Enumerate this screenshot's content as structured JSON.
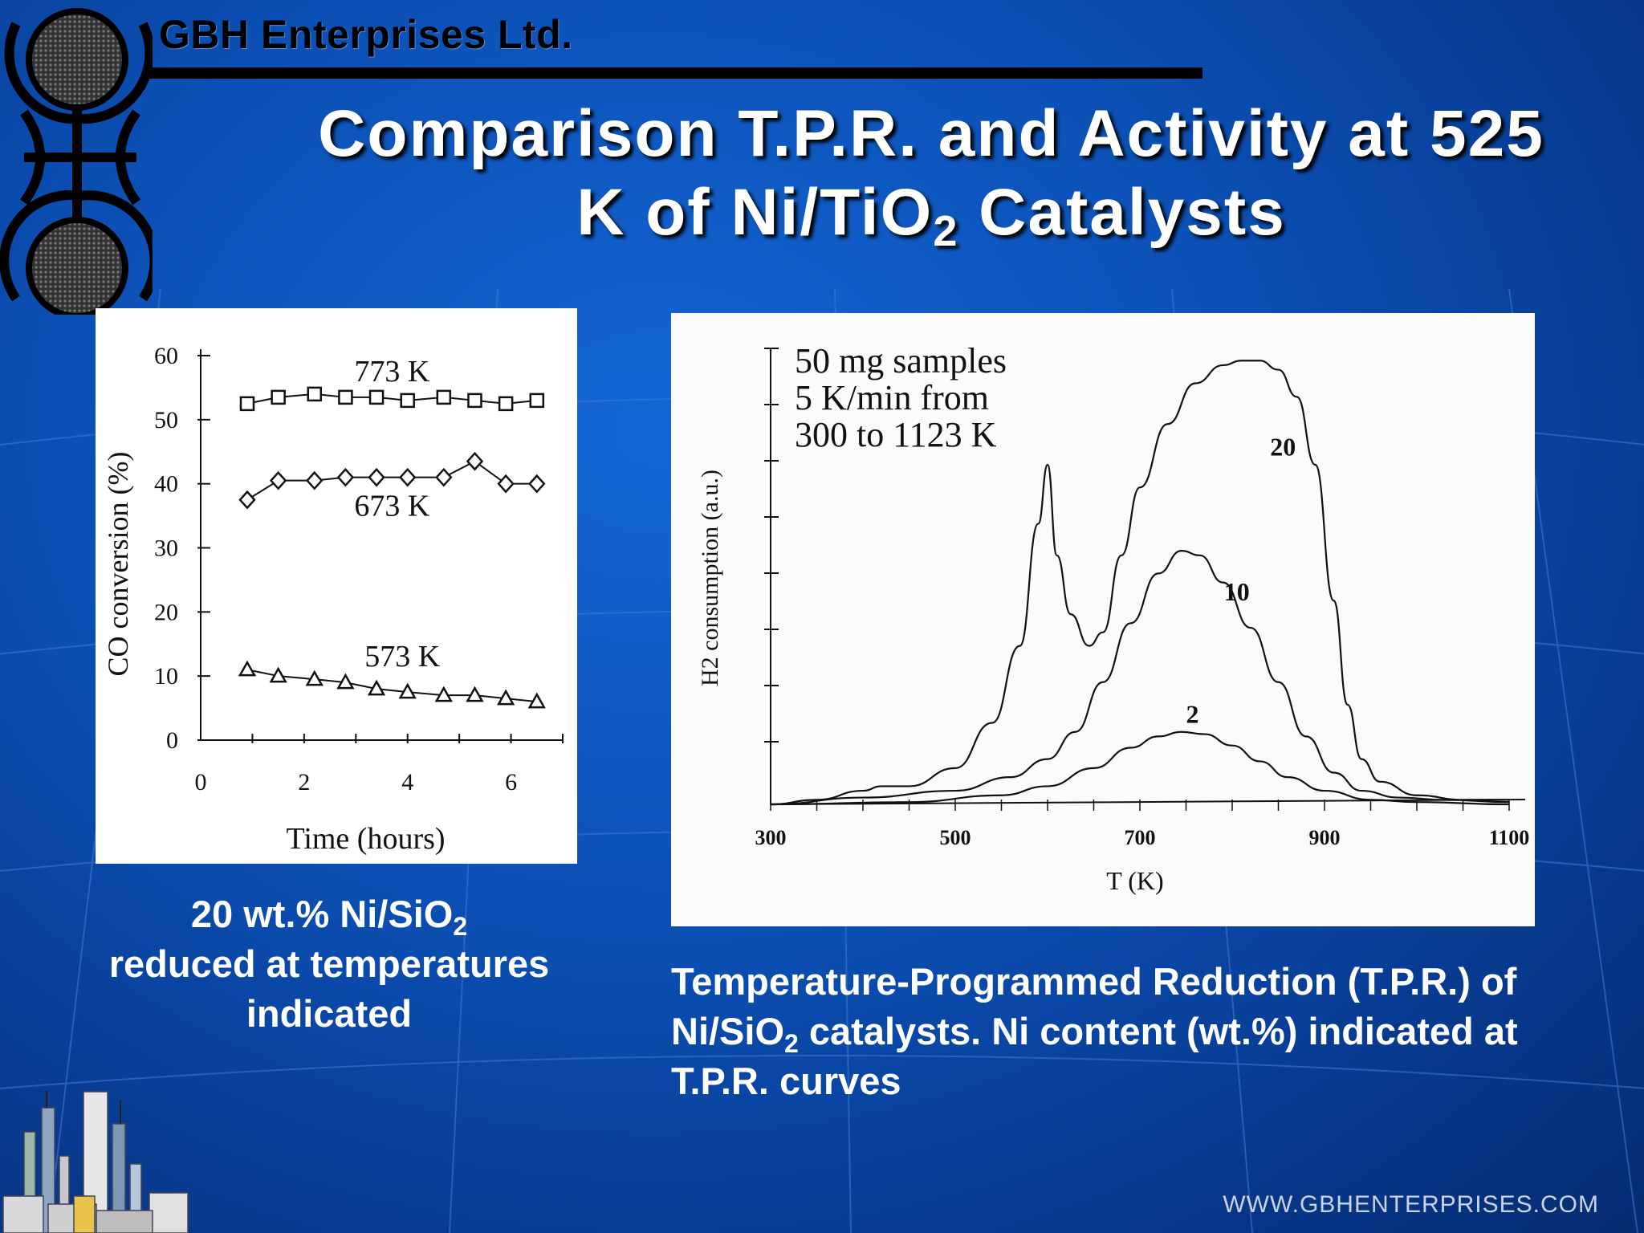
{
  "header": {
    "company": "GBH Enterprises Ltd.",
    "title_line1": "Comparison T.P.R. and Activity at 525",
    "title_line2_pre": "K of Ni/TiO",
    "title_line2_sub": "2",
    "title_line2_post": " Catalysts"
  },
  "left_caption": {
    "line1_pre": "20 wt.% Ni/SiO",
    "line1_sub": "2",
    "line2": "reduced at temperatures",
    "line3": "indicated"
  },
  "right_caption": {
    "line1": "Temperature-Programmed Reduction (T.P.R.) of",
    "line2_pre": "Ni/SiO",
    "line2_sub": "2",
    "line2_post": " catalysts. Ni content (wt.%) indicated at",
    "line3": "T.P.R. curves"
  },
  "footer": {
    "url": "WWW.GBHENTERPRISES.COM"
  },
  "colors": {
    "background": "#0b4fb3",
    "text": "#ffffff",
    "plot_ink": "#111111"
  },
  "chart_data": [
    {
      "type": "line",
      "xlabel": "Time (hours)",
      "ylabel": "CO conversion (%)",
      "xlim": [
        0,
        7
      ],
      "ylim": [
        0,
        60
      ],
      "xticks": [
        "0",
        "2",
        "4",
        "6"
      ],
      "yticks": [
        "0",
        "10",
        "20",
        "30",
        "40",
        "50",
        "60"
      ],
      "grid": false,
      "series": [
        {
          "name": "773 K",
          "marker": "square",
          "x": [
            0.9,
            1.5,
            2.2,
            2.8,
            3.4,
            4.0,
            4.7,
            5.3,
            5.9,
            6.5
          ],
          "values": [
            52.5,
            53.5,
            54,
            53.5,
            53.5,
            53,
            53.5,
            53,
            52.5,
            53
          ]
        },
        {
          "name": "673 K",
          "marker": "diamond",
          "x": [
            0.9,
            1.5,
            2.2,
            2.8,
            3.4,
            4.0,
            4.7,
            5.3,
            5.9,
            6.5
          ],
          "values": [
            37.5,
            40.5,
            40.5,
            41,
            41,
            41,
            41,
            43.5,
            40,
            40
          ]
        },
        {
          "name": "573 K",
          "marker": "triangle",
          "x": [
            0.9,
            1.5,
            2.2,
            2.8,
            3.4,
            4.0,
            4.7,
            5.3,
            5.9,
            6.5
          ],
          "values": [
            11,
            10,
            9.5,
            9,
            8,
            7.5,
            7,
            7,
            6.5,
            6
          ]
        }
      ]
    },
    {
      "type": "line",
      "xlabel": "T (K)",
      "ylabel": "H2 consumption (a.u.)",
      "xlim": [
        300,
        1100
      ],
      "ylim": [
        0,
        100
      ],
      "xticks": [
        "300",
        "500",
        "700",
        "900",
        "1100"
      ],
      "annotation": [
        "50 mg samples",
        "5 K/min from",
        "300 to 1123 K"
      ],
      "grid": false,
      "series": [
        {
          "name": "20",
          "x": [
            300,
            350,
            400,
            420,
            450,
            500,
            540,
            570,
            590,
            600,
            610,
            625,
            645,
            660,
            680,
            700,
            730,
            760,
            790,
            810,
            830,
            850,
            870,
            890,
            910,
            925,
            940,
            960,
            1000,
            1050,
            1100
          ],
          "values": [
            0,
            1,
            3,
            4,
            4,
            8,
            18,
            35,
            62,
            75,
            55,
            42,
            35,
            38,
            55,
            70,
            84,
            93,
            97,
            98,
            98,
            96,
            90,
            75,
            45,
            22,
            10,
            5,
            2,
            1,
            1
          ]
        },
        {
          "name": "10",
          "x": [
            300,
            400,
            500,
            560,
            600,
            630,
            660,
            690,
            720,
            745,
            765,
            790,
            820,
            850,
            880,
            910,
            940,
            980,
            1030,
            1100
          ],
          "values": [
            0,
            1.5,
            3,
            6,
            10,
            16,
            27,
            40,
            51,
            56,
            55,
            49,
            39,
            27,
            15,
            7,
            3,
            1.5,
            1,
            0.5
          ]
        },
        {
          "name": "2",
          "x": [
            300,
            450,
            550,
            600,
            650,
            690,
            720,
            745,
            770,
            800,
            830,
            860,
            900,
            950,
            1000,
            1100
          ],
          "values": [
            0,
            0.5,
            2,
            4,
            8,
            12.5,
            15,
            16,
            15.5,
            13,
            9.5,
            6,
            3,
            1,
            0.5,
            0
          ]
        }
      ],
      "curve_labels": [
        "20",
        "10",
        "2"
      ]
    }
  ]
}
